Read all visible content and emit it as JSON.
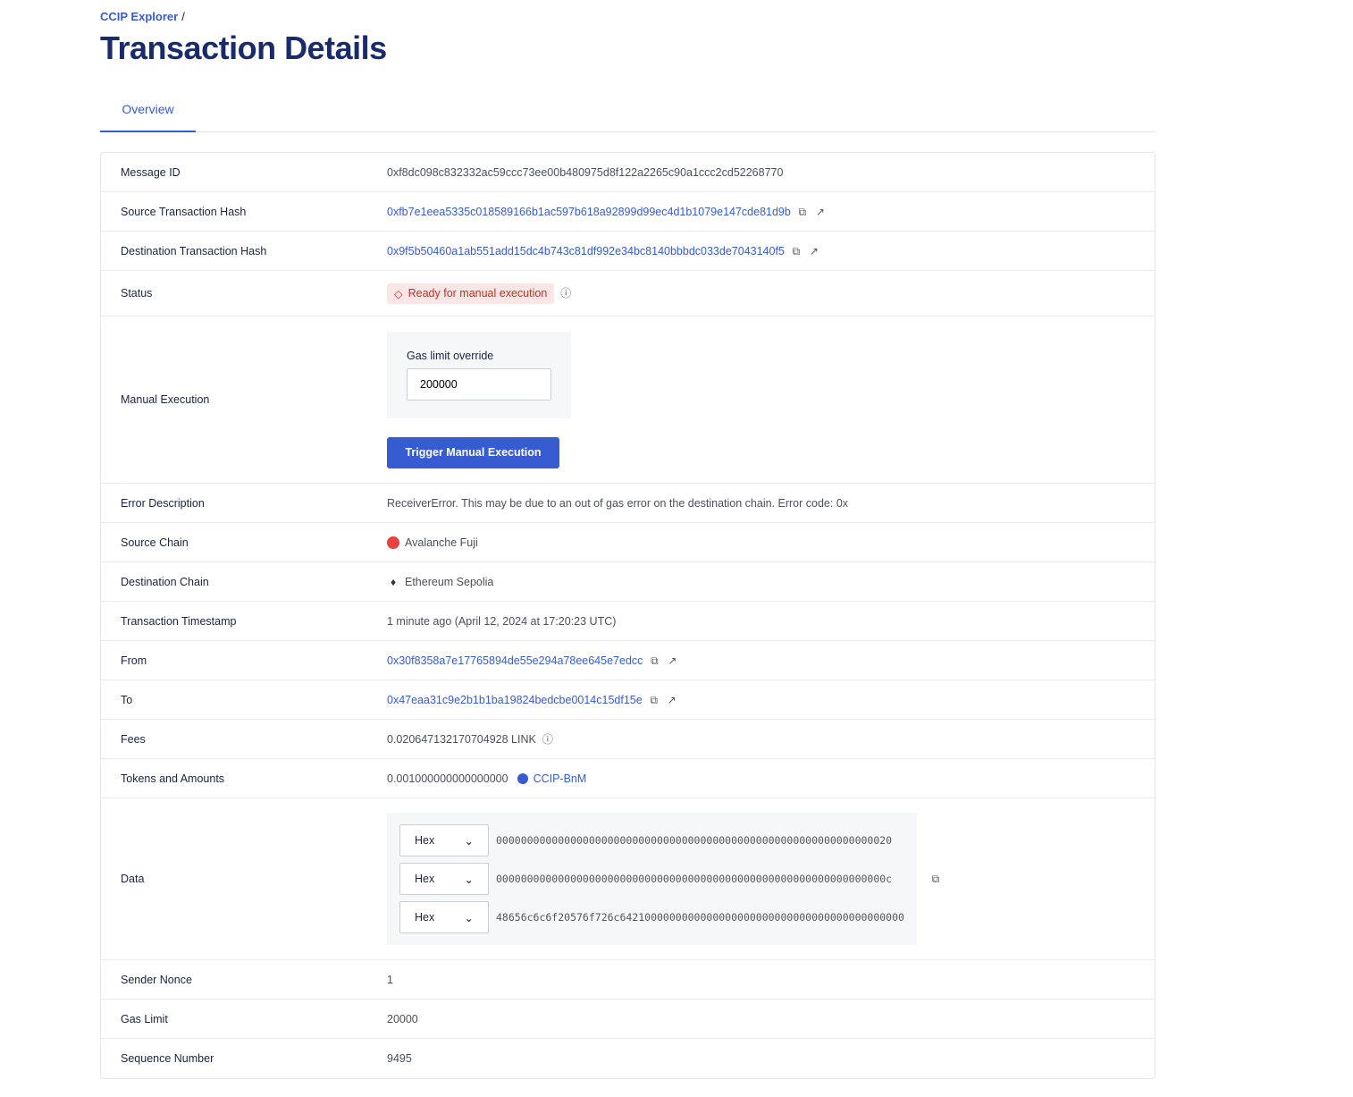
{
  "breadcrumb": {
    "root": "CCIP Explorer",
    "sep": "/"
  },
  "title": "Transaction Details",
  "tabs": [
    {
      "label": "Overview"
    }
  ],
  "rows": {
    "message_id": {
      "label": "Message ID",
      "value": "0xf8dc098c832332ac59ccc73ee00b480975d8f122a2265c90a1ccc2cd52268770"
    },
    "source_tx": {
      "label": "Source Transaction Hash",
      "value": "0xfb7e1eea5335c018589166b1ac597b618a92899d99ec4d1b1079e147cde81d9b"
    },
    "dest_tx": {
      "label": "Destination Transaction Hash",
      "value": "0x9f5b50460a1ab551add15dc4b743c81df992e34bc8140bbbdc033de7043140f5"
    },
    "status": {
      "label": "Status",
      "value": "Ready for manual execution",
      "color": "#c0302b"
    },
    "manual": {
      "label": "Manual Execution",
      "gas_label": "Gas limit override",
      "gas_value": "200000",
      "button": "Trigger Manual Execution"
    },
    "error": {
      "label": "Error Description",
      "value": "ReceiverError. This may be due to an out of gas error on the destination chain. Error code: 0x"
    },
    "source_chain": {
      "label": "Source Chain",
      "value": "Avalanche Fuji"
    },
    "dest_chain": {
      "label": "Destination Chain",
      "value": "Ethereum Sepolia"
    },
    "timestamp": {
      "label": "Transaction Timestamp",
      "value": "1 minute ago (April 12, 2024 at 17:20:23 UTC)"
    },
    "from": {
      "label": "From",
      "value": "0x30f8358a7e17765894de55e294a78ee645e7edcc"
    },
    "to": {
      "label": "To",
      "value": "0x47eaa31c9e2b1b1ba19824bedcbe0014c15df15e"
    },
    "fees": {
      "label": "Fees",
      "value": "0.020647132170704928 LINK"
    },
    "tokens": {
      "label": "Tokens and Amounts",
      "amount": "0.001000000000000000",
      "token": "CCIP-BnM"
    },
    "data": {
      "label": "Data",
      "words": [
        {
          "format": "Hex",
          "value": "0000000000000000000000000000000000000000000000000000000000000020"
        },
        {
          "format": "Hex",
          "value": "000000000000000000000000000000000000000000000000000000000000000c"
        },
        {
          "format": "Hex",
          "value": "48656c6c6f20576f726c6421000000000000000000000000000000000000000000"
        }
      ]
    },
    "nonce": {
      "label": "Sender Nonce",
      "value": "1"
    },
    "gas_limit": {
      "label": "Gas Limit",
      "value": "20000"
    },
    "sequence": {
      "label": "Sequence Number",
      "value": "9495"
    }
  },
  "accent": "#375bd2"
}
